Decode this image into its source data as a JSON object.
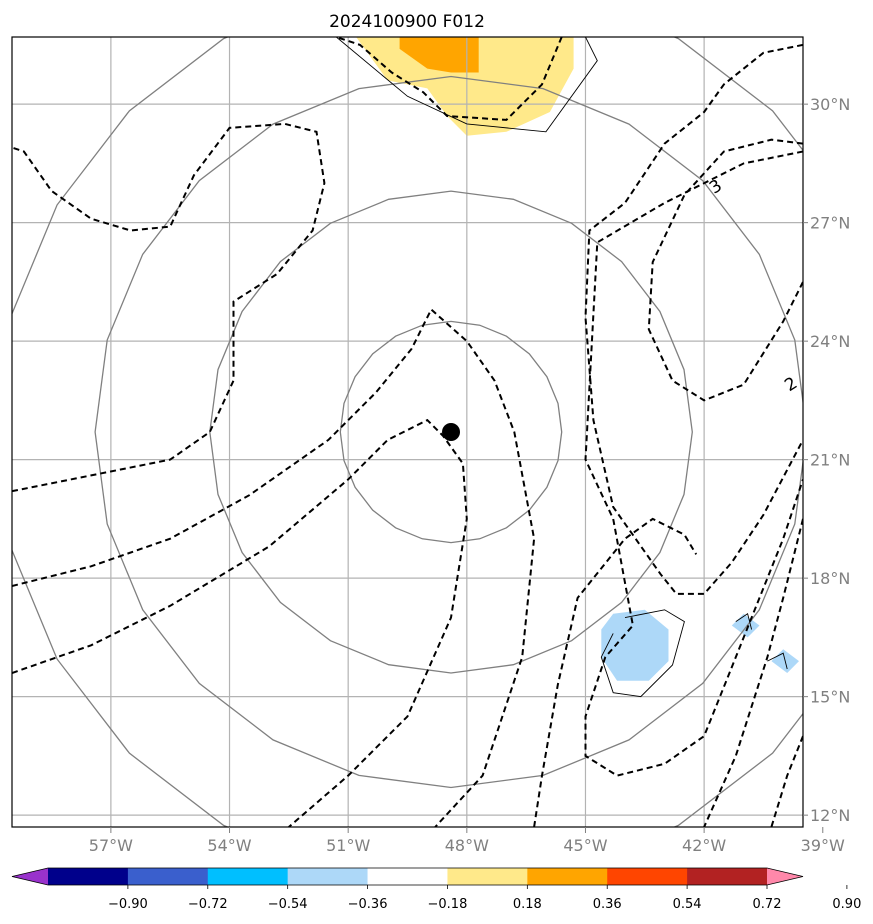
{
  "chart_data": {
    "type": "map-contour",
    "title": "2024100900 F012",
    "lon_range": [
      -59.5,
      -39.5
    ],
    "lat_range": [
      11.7,
      31.7
    ],
    "x_tick_labels": [
      {
        "lon": -57,
        "label": "57°W"
      },
      {
        "lon": -54,
        "label": "54°W"
      },
      {
        "lon": -51,
        "label": "51°W"
      },
      {
        "lon": -48,
        "label": "48°W"
      },
      {
        "lon": -45,
        "label": "45°W"
      },
      {
        "lon": -42,
        "label": "42°W"
      },
      {
        "lon": -39,
        "label": "39°W"
      }
    ],
    "y_tick_labels": [
      {
        "lat": 12,
        "label": "12°N"
      },
      {
        "lat": 15,
        "label": "15°N"
      },
      {
        "lat": 18,
        "label": "18°N"
      },
      {
        "lat": 21,
        "label": "21°N"
      },
      {
        "lat": 24,
        "label": "24°N"
      },
      {
        "lat": 27,
        "label": "27°N"
      },
      {
        "lat": 30,
        "label": "30°N"
      }
    ],
    "grid": true,
    "storm_center": {
      "lon": -48.4,
      "lat": 21.7
    },
    "range_rings_radii_deg": [
      2.8,
      6.1,
      9.0,
      11.5
    ],
    "contour_labels": [
      {
        "text": "3",
        "lon": -41.7,
        "lat": 27.9
      },
      {
        "text": "2",
        "lon": -39.8,
        "lat": 22.9
      }
    ],
    "dashed_contours": [
      [
        [
          -59.5,
          20.2
        ],
        [
          -57.5,
          20.6
        ],
        [
          -55.5,
          21.0
        ],
        [
          -54.5,
          21.7
        ],
        [
          -53.9,
          23.0
        ],
        [
          -53.9,
          25.0
        ],
        [
          -52.8,
          25.7
        ],
        [
          -51.9,
          26.8
        ],
        [
          -51.6,
          28.0
        ],
        [
          -51.8,
          29.3
        ],
        [
          -52.6,
          29.5
        ],
        [
          -54.0,
          29.4
        ],
        [
          -54.9,
          28.2
        ],
        [
          -55.5,
          26.9
        ],
        [
          -56.5,
          26.8
        ],
        [
          -57.5,
          27.1
        ],
        [
          -58.5,
          27.8
        ],
        [
          -59.2,
          28.8
        ],
        [
          -59.5,
          28.9
        ]
      ],
      [
        [
          -59.5,
          17.8
        ],
        [
          -57.5,
          18.3
        ],
        [
          -55.5,
          19.0
        ],
        [
          -53.5,
          20.1
        ],
        [
          -51.5,
          21.5
        ],
        [
          -50.3,
          22.7
        ],
        [
          -49.4,
          23.8
        ],
        [
          -48.9,
          24.8
        ],
        [
          -48.0,
          24.0
        ],
        [
          -47.3,
          23.0
        ],
        [
          -46.8,
          21.7
        ],
        [
          -46.3,
          19.0
        ],
        [
          -46.6,
          16.0
        ],
        [
          -47.6,
          13.0
        ],
        [
          -48.8,
          11.7
        ]
      ],
      [
        [
          -59.5,
          15.6
        ],
        [
          -57.5,
          16.3
        ],
        [
          -55.5,
          17.3
        ],
        [
          -53.0,
          18.8
        ],
        [
          -51.0,
          20.5
        ],
        [
          -50.0,
          21.5
        ],
        [
          -49.0,
          22.0
        ],
        [
          -48.6,
          21.6
        ],
        [
          -48.1,
          20.9
        ],
        [
          -48.0,
          19.5
        ],
        [
          -48.4,
          17.0
        ],
        [
          -49.5,
          14.5
        ],
        [
          -51.0,
          13.0
        ],
        [
          -52.5,
          11.7
        ]
      ],
      [
        [
          -46.3,
          11.7
        ],
        [
          -46.1,
          13.0
        ],
        [
          -45.7,
          15.3
        ],
        [
          -45.2,
          17.5
        ],
        [
          -44.0,
          19.0
        ],
        [
          -43.3,
          19.5
        ],
        [
          -42.5,
          19.1
        ],
        [
          -42.2,
          18.6
        ]
      ],
      [
        [
          -45.6,
          31.7
        ],
        [
          -46.1,
          30.5
        ],
        [
          -47.0,
          29.6
        ],
        [
          -48.5,
          29.7
        ],
        [
          -49.1,
          30.3
        ],
        [
          -49.9,
          30.8
        ],
        [
          -50.7,
          31.5
        ],
        [
          -51.3,
          31.7
        ]
      ],
      [
        [
          -39.5,
          31.5
        ],
        [
          -40.5,
          31.3
        ],
        [
          -41.5,
          30.5
        ],
        [
          -42.0,
          29.8
        ],
        [
          -43.0,
          29.0
        ],
        [
          -44.0,
          27.5
        ],
        [
          -44.9,
          26.8
        ],
        [
          -45.0,
          24.6
        ],
        [
          -44.8,
          22.0
        ],
        [
          -44.3,
          19.8
        ],
        [
          -43.1,
          18.1
        ],
        [
          -42.7,
          17.6
        ],
        [
          -42.0,
          17.6
        ],
        [
          -41.3,
          18.4
        ],
        [
          -40.5,
          19.6
        ],
        [
          -39.5,
          21.5
        ]
      ],
      [
        [
          -39.5,
          29.0
        ],
        [
          -40.3,
          29.1
        ],
        [
          -41.5,
          28.8
        ],
        [
          -42.5,
          27.7
        ],
        [
          -43.3,
          26.0
        ],
        [
          -43.4,
          24.3
        ],
        [
          -42.8,
          23.0
        ],
        [
          -42.0,
          22.5
        ],
        [
          -41.0,
          22.9
        ],
        [
          -40.0,
          24.5
        ],
        [
          -39.5,
          25.5
        ]
      ],
      [
        [
          -39.5,
          28.8
        ],
        [
          -41.0,
          28.5
        ],
        [
          -43.0,
          27.5
        ],
        [
          -44.7,
          26.5
        ],
        [
          -45.0,
          21.0
        ],
        [
          -44.3,
          19.5
        ],
        [
          -43.8,
          16.8
        ],
        [
          -44.5,
          16.0
        ],
        [
          -45.0,
          14.5
        ],
        [
          -45.0,
          13.5
        ],
        [
          -44.2,
          13.0
        ],
        [
          -43.0,
          13.3
        ],
        [
          -42.0,
          14.0
        ],
        [
          -41.4,
          15.5
        ],
        [
          -40.8,
          17.0
        ],
        [
          -40.0,
          19.0
        ],
        [
          -39.5,
          20.5
        ]
      ],
      [
        [
          -39.5,
          19.5
        ],
        [
          -40.0,
          17.5
        ],
        [
          -40.4,
          16.0
        ],
        [
          -41.2,
          13.5
        ],
        [
          -42.0,
          11.7
        ]
      ],
      [
        [
          -39.5,
          14.0
        ],
        [
          -39.9,
          13.0
        ],
        [
          -40.3,
          11.7
        ]
      ]
    ],
    "filled_regions": [
      {
        "color": "#ffe98a",
        "points": [
          [
            -50.8,
            31.7
          ],
          [
            -45.3,
            31.7
          ],
          [
            -45.3,
            30.9
          ],
          [
            -45.9,
            29.8
          ],
          [
            -47.0,
            29.3
          ],
          [
            -48.0,
            29.2
          ],
          [
            -48.5,
            29.7
          ],
          [
            -49.0,
            30.4
          ],
          [
            -50.0,
            30.6
          ],
          [
            -50.8,
            31.7
          ]
        ]
      },
      {
        "color": "#ffa500",
        "points": [
          [
            -49.7,
            31.7
          ],
          [
            -47.7,
            31.7
          ],
          [
            -47.7,
            30.8
          ],
          [
            -48.4,
            30.8
          ],
          [
            -49.0,
            30.9
          ],
          [
            -49.7,
            31.4
          ]
        ]
      },
      {
        "color": "#add8f8",
        "points": [
          [
            -44.3,
            17.1
          ],
          [
            -43.5,
            17.2
          ],
          [
            -42.9,
            16.7
          ],
          [
            -42.9,
            15.9
          ],
          [
            -43.4,
            15.4
          ],
          [
            -44.2,
            15.4
          ],
          [
            -44.6,
            16.0
          ],
          [
            -44.6,
            16.7
          ]
        ]
      },
      {
        "color": "#add8f8",
        "points": [
          [
            -41.0,
            17.1
          ],
          [
            -40.6,
            16.8
          ],
          [
            -40.9,
            16.5
          ],
          [
            -41.3,
            16.8
          ]
        ]
      },
      {
        "color": "#add8f8",
        "points": [
          [
            -40.0,
            16.2
          ],
          [
            -39.6,
            15.9
          ],
          [
            -39.9,
            15.6
          ],
          [
            -40.3,
            15.9
          ]
        ]
      }
    ],
    "outline_regions": [
      [
        [
          -51.3,
          31.7
        ],
        [
          -49.5,
          30.2
        ],
        [
          -48.0,
          29.5
        ],
        [
          -46.0,
          29.3
        ],
        [
          -44.7,
          31.1
        ],
        [
          -45.0,
          31.7
        ]
      ],
      [
        [
          -44.0,
          17.0
        ],
        [
          -43.0,
          17.2
        ],
        [
          -42.5,
          16.9
        ],
        [
          -42.8,
          15.8
        ],
        [
          -43.6,
          15.0
        ],
        [
          -44.3,
          15.1
        ],
        [
          -44.6,
          16.0
        ],
        [
          -44.3,
          16.6
        ]
      ],
      [
        [
          -41.2,
          16.9
        ],
        [
          -40.9,
          17.1
        ],
        [
          -40.8,
          16.7
        ]
      ],
      [
        [
          -40.4,
          15.9
        ],
        [
          -40.0,
          16.1
        ],
        [
          -39.9,
          15.7
        ]
      ]
    ],
    "colorbar": {
      "colors": [
        "#9932cc",
        "#00008b",
        "#3a5fcd",
        "#00bfff",
        "#add8f8",
        "#ffffff",
        "#ffe98a",
        "#ffa500",
        "#ff4500",
        "#b22222",
        "#ff88aa"
      ],
      "tick_labels": [
        "−0.90",
        "−0.72",
        "−0.54",
        "−0.36",
        "−0.18",
        "0.18",
        "0.36",
        "0.54",
        "0.72",
        "0.90"
      ]
    }
  }
}
